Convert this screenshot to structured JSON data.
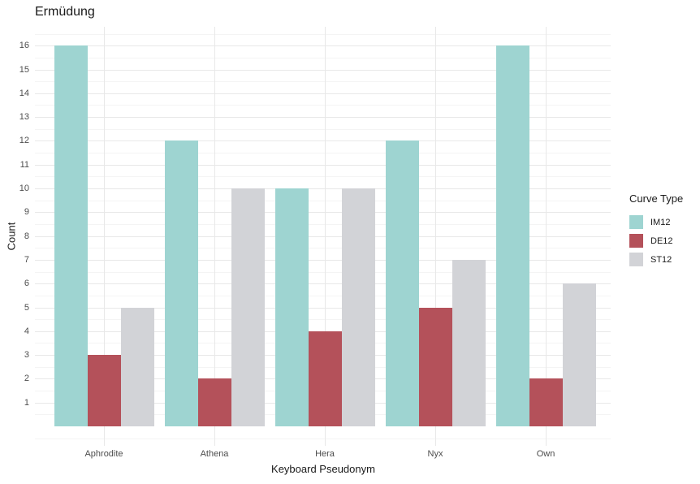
{
  "chart_data": {
    "type": "bar",
    "title": "Ermüdung",
    "xlabel": "Keyboard Pseudonym",
    "ylabel": "Count",
    "categories": [
      "Aphrodite",
      "Athena",
      "Hera",
      "Nyx",
      "Own"
    ],
    "series": [
      {
        "name": "IM12",
        "color": "#9ED4D1",
        "values": [
          16,
          12,
          10,
          12,
          16
        ]
      },
      {
        "name": "DE12",
        "color": "#B4515A",
        "values": [
          3,
          2,
          4,
          5,
          2
        ]
      },
      {
        "name": "ST12",
        "color": "#D2D3D7",
        "values": [
          5,
          10,
          10,
          7,
          6
        ]
      }
    ],
    "legend": {
      "title": "Curve Type",
      "position": "right"
    },
    "ylim": [
      0,
      16
    ],
    "yticks": [
      1,
      2,
      3,
      4,
      5,
      6,
      7,
      8,
      9,
      10,
      11,
      12,
      13,
      14,
      15,
      16
    ],
    "grid": {
      "major": true,
      "minor": true,
      "vertical_major_at_categories": true
    },
    "colors": {
      "grid_major": "#E8E8E8",
      "grid_minor": "#F4F4F4",
      "tick_label": "#4D4D4D",
      "text": "#1A1A1A",
      "background": "#FFFFFF"
    }
  }
}
